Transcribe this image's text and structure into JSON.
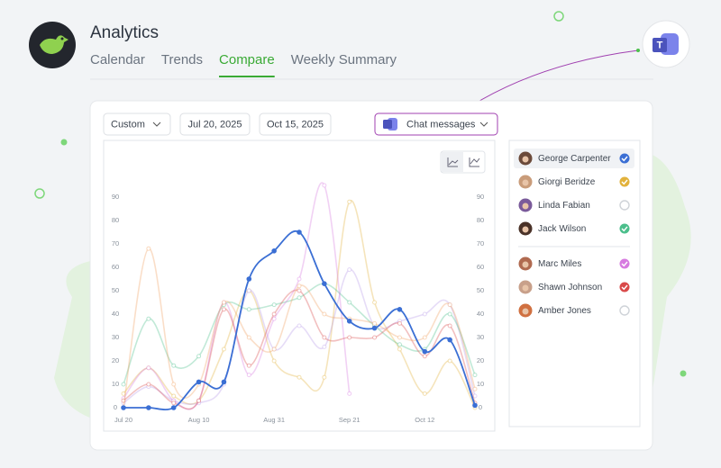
{
  "header": {
    "title": "Analytics",
    "tabs": [
      "Calendar",
      "Trends",
      "Compare",
      "Weekly Summary"
    ],
    "active_tab": 2
  },
  "filters": {
    "range": "Custom",
    "start": "Jul 20, 2025",
    "end": "Oct 15, 2025",
    "metric": "Chat messages"
  },
  "people": [
    {
      "name": "George Carpenter",
      "color": "#3b6fd4",
      "checked": true
    },
    {
      "name": "Giorgi Beridze",
      "color": "#e2b23c",
      "checked": true
    },
    {
      "name": "Linda Fabian",
      "color": "#b89be8",
      "checked": false
    },
    {
      "name": "Jack Wilson",
      "color": "#4cbf8c",
      "checked": true
    },
    {
      "name": "Marc Miles",
      "color": "#d77be0",
      "checked": true
    },
    {
      "name": "Shawn Johnson",
      "color": "#d94a4a",
      "checked": true
    },
    {
      "name": "Amber Jones",
      "color": "#f0a060",
      "checked": false
    }
  ],
  "chart_data": {
    "type": "line",
    "categories": [
      "Jul 20",
      null,
      null,
      "Aug 10",
      null,
      null,
      "Aug 31",
      null,
      null,
      "Sep 21",
      null,
      null,
      "Oct 12",
      null,
      null
    ],
    "ylim": [
      0,
      90
    ],
    "yticks": [
      0,
      10,
      20,
      30,
      40,
      50,
      60,
      70,
      80,
      90
    ],
    "highlight": 0,
    "series": [
      {
        "name": "George Carpenter",
        "color": "#3b6fd4",
        "values": [
          0,
          0,
          0,
          11,
          11,
          55,
          67,
          75,
          53,
          37,
          34,
          42,
          24,
          29,
          1
        ]
      },
      {
        "name": "Giorgi Beridze",
        "color": "#e2b23c",
        "values": [
          6,
          17,
          5,
          3,
          25,
          50,
          20,
          13,
          13,
          88,
          45,
          25,
          6,
          20,
          0
        ]
      },
      {
        "name": "Linda Fabian",
        "color": "#b89be8",
        "values": [
          2,
          9,
          3,
          2,
          10,
          50,
          25,
          35,
          26,
          59,
          35,
          37,
          40,
          44,
          5
        ]
      },
      {
        "name": "Jack Wilson",
        "color": "#4cbf8c",
        "values": [
          10,
          38,
          18,
          22,
          44,
          42,
          44,
          47,
          53,
          45,
          35,
          27,
          25,
          40,
          14
        ]
      },
      {
        "name": "Marc Miles",
        "color": "#d77be0",
        "values": [
          4,
          17,
          3,
          3,
          45,
          14,
          38,
          55,
          95,
          6,
          null,
          null,
          null,
          null,
          null
        ]
      },
      {
        "name": "Shawn Johnson",
        "color": "#d94a4a",
        "values": [
          3,
          10,
          2,
          3,
          42,
          18,
          40,
          50,
          30,
          30,
          30,
          36,
          22,
          35,
          2
        ]
      },
      {
        "name": "Amber Jones",
        "color": "#f0a060",
        "values": [
          0,
          68,
          10,
          10,
          45,
          30,
          25,
          52,
          40,
          38,
          36,
          30,
          30,
          44,
          8
        ]
      }
    ]
  }
}
